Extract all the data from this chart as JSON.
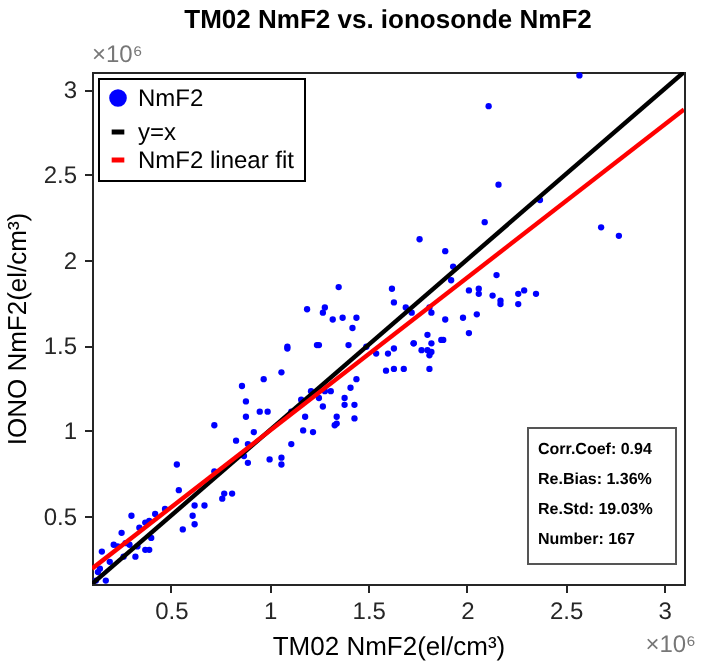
{
  "chart_data": {
    "type": "scatter",
    "title": "TM02 NmF2 vs. ionosonde NmF2",
    "xlabel": "TM02 NmF2(el/cm³)",
    "ylabel": "IONO NmF2(el/cm³)",
    "xlim": [
      0.1,
      3.1
    ],
    "ylim": [
      0.1,
      3.1
    ],
    "xticks": [
      0.5,
      1,
      1.5,
      2,
      2.5,
      3
    ],
    "yticks": [
      0.5,
      1,
      1.5,
      2,
      2.5,
      3
    ],
    "grid": false,
    "legend": "top left",
    "annotations": [
      "×10⁶",
      "×10⁶",
      "Corr.Coef: 0.94",
      "Re.Bias: 1.36%",
      "Re.Std: 19.03%",
      "Number: 167"
    ],
    "series": [
      {
        "name": "NmF2",
        "marker": "circle",
        "color": "#0000ff",
        "x": [
          2.57,
          2.11,
          2.16,
          2.09,
          2.37,
          2.68,
          2.77,
          1.76,
          1.89,
          1.93,
          1.35,
          1.62,
          1.19,
          1.28,
          1.27,
          1.32,
          1.37,
          1.44,
          1.42,
          1.09,
          1.24,
          1.4,
          1.63,
          1.69,
          1.81,
          1.72,
          1.82,
          1.92,
          2.01,
          2.06,
          2.06,
          2.15,
          2.17,
          2.17,
          2.13,
          2.26,
          2.29,
          2.35,
          2.26,
          1.89,
          1.98,
          2.05,
          2.01,
          1.8,
          1.88,
          1.73,
          1.77,
          1.82,
          1.81,
          1.09,
          1.25,
          1.49,
          1.6,
          1.63,
          1.73,
          1.8,
          1.82,
          1.87,
          1.54,
          1.59,
          1.63,
          1.68,
          1.81,
          1.06,
          0.86,
          0.97,
          1.21,
          1.28,
          1.31,
          1.41,
          1.44,
          1.38,
          1.16,
          1.25,
          0.88,
          0.95,
          0.99,
          0.88,
          1.11,
          1.18,
          1.27,
          1.34,
          1.38,
          1.43,
          1.34,
          1.43,
          1.17,
          1.22,
          1.33,
          0.72,
          0.83,
          0.89,
          0.92,
          1.11,
          0.87,
          0.89,
          1.0,
          1.06,
          1.06,
          0.53,
          0.72,
          0.77,
          0.81,
          0.76,
          0.54,
          0.62,
          0.67,
          0.61,
          0.62,
          0.56,
          0.47,
          0.42,
          0.39,
          0.37,
          0.34,
          0.3,
          0.25,
          0.21,
          0.27,
          0.33,
          0.39,
          0.4,
          0.26,
          0.32,
          0.37,
          0.15,
          0.19,
          0.14,
          0.12,
          0.17,
          0.13,
          0.23,
          0.29
        ],
        "values": [
          3.08,
          2.9,
          2.44,
          2.22,
          2.35,
          2.19,
          2.14,
          2.12,
          2.05,
          1.96,
          1.84,
          1.83,
          1.71,
          1.72,
          1.69,
          1.65,
          1.66,
          1.66,
          1.6,
          1.49,
          1.5,
          1.5,
          1.75,
          1.72,
          1.72,
          1.69,
          1.69,
          1.88,
          1.82,
          1.83,
          1.8,
          1.91,
          1.76,
          1.74,
          1.79,
          1.8,
          1.82,
          1.8,
          1.74,
          1.65,
          1.66,
          1.68,
          1.57,
          1.56,
          1.53,
          1.51,
          1.47,
          1.46,
          1.44,
          1.48,
          1.5,
          1.49,
          1.45,
          1.48,
          1.51,
          1.47,
          1.51,
          1.53,
          1.45,
          1.35,
          1.36,
          1.36,
          1.36,
          1.34,
          1.26,
          1.3,
          1.23,
          1.23,
          1.23,
          1.25,
          1.3,
          1.19,
          1.18,
          1.19,
          1.17,
          1.11,
          1.11,
          1.08,
          1.11,
          1.08,
          1.14,
          1.08,
          1.15,
          1.15,
          1.04,
          1.07,
          1.0,
          0.99,
          1.03,
          1.03,
          0.94,
          0.92,
          0.99,
          0.92,
          0.85,
          0.81,
          0.83,
          0.84,
          0.8,
          0.8,
          0.76,
          0.63,
          0.63,
          0.6,
          0.65,
          0.56,
          0.56,
          0.5,
          0.45,
          0.42,
          0.54,
          0.51,
          0.47,
          0.46,
          0.43,
          0.5,
          0.4,
          0.33,
          0.34,
          0.32,
          0.3,
          0.37,
          0.26,
          0.26,
          0.3,
          0.29,
          0.23,
          0.19,
          0.12,
          0.12,
          0.17,
          0.32,
          0.33
        ]
      },
      {
        "name": "y=x",
        "type": "line",
        "color": "#000000",
        "x": [
          0.1,
          3.1
        ],
        "values": [
          0.1,
          3.1
        ]
      },
      {
        "name": "NmF2 linear fit",
        "type": "line",
        "color": "#ff0000",
        "x": [
          0.1,
          3.1
        ],
        "values": [
          0.19,
          2.88
        ]
      }
    ]
  }
}
